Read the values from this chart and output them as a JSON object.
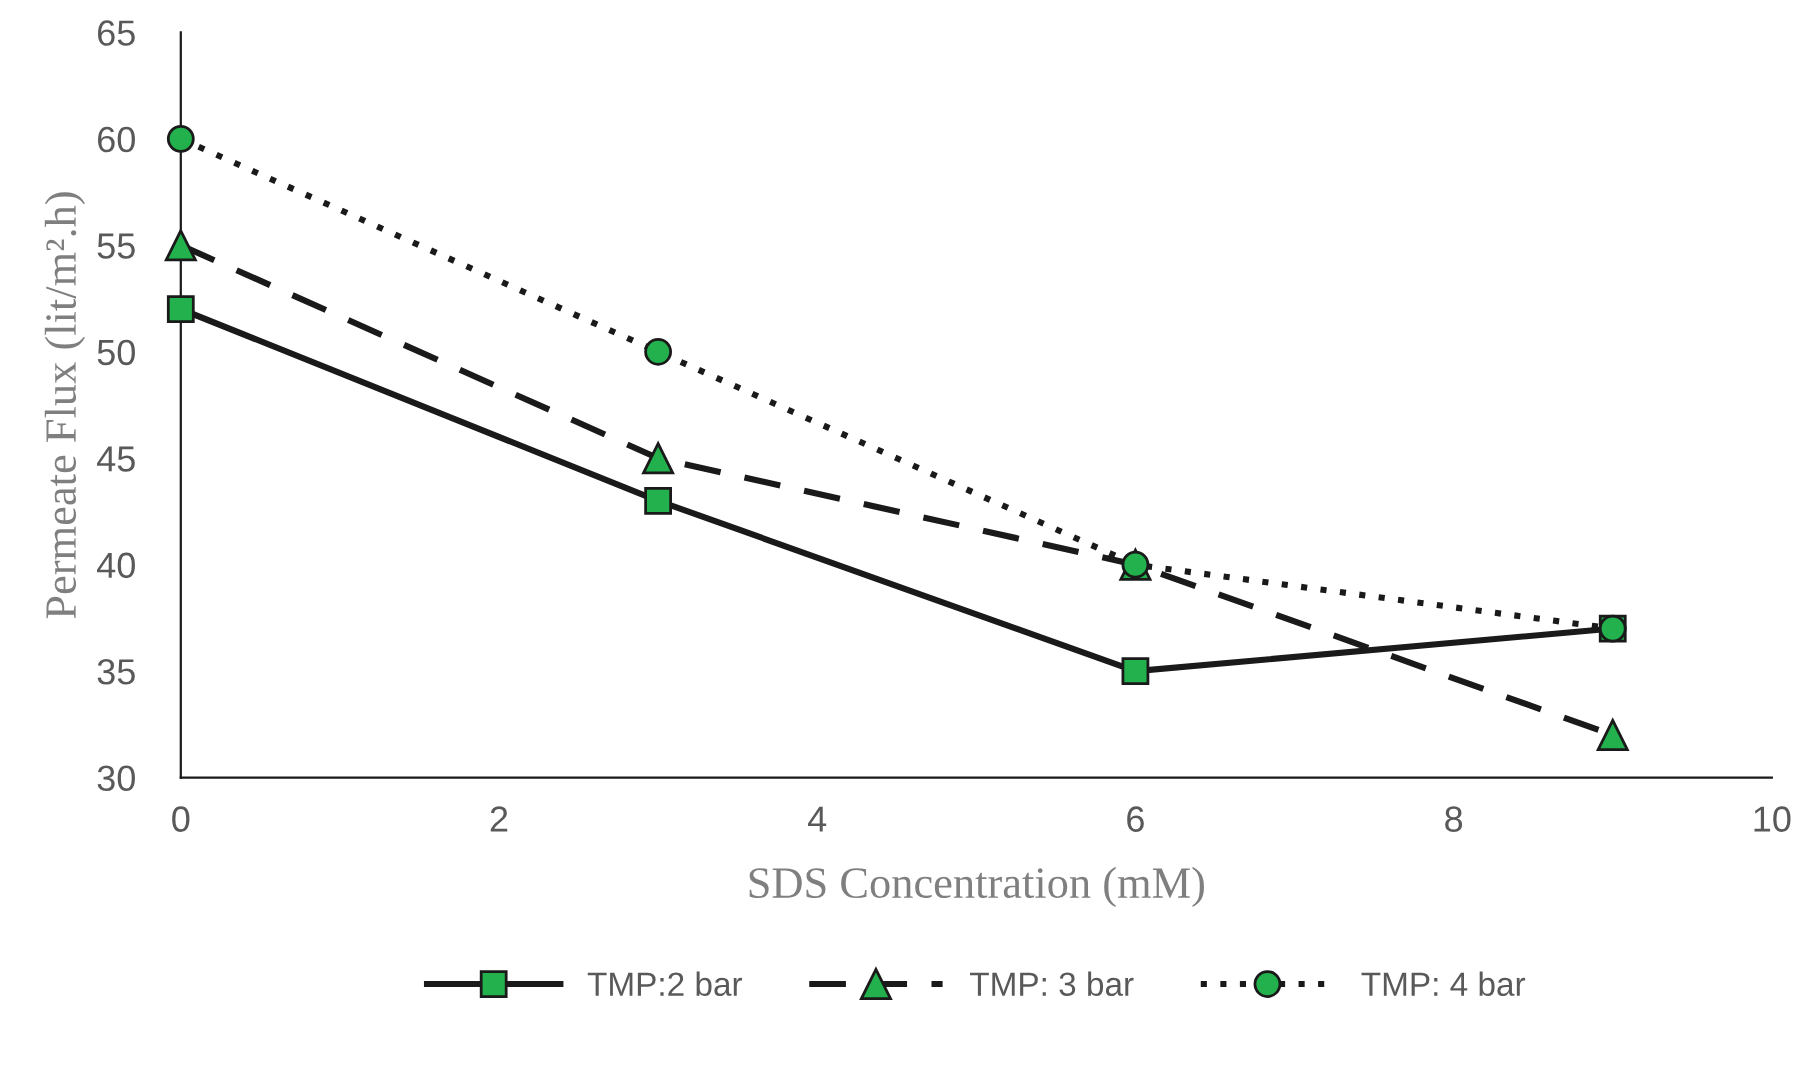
{
  "chart_data": {
    "type": "line",
    "xlabel": "SDS Concentration (mM)",
    "ylabel": "Permeate Flux (lit/m².h)",
    "x": [
      0,
      3,
      6,
      9
    ],
    "series": [
      {
        "name": "TMP:2 bar",
        "color": "#1a1a1a",
        "values": [
          52,
          43,
          35,
          37
        ],
        "marker": "square",
        "line_style": "solid"
      },
      {
        "name": "TMP: 3 bar",
        "color": "#1a1a1a",
        "values": [
          55,
          45,
          40,
          32
        ],
        "marker": "triangle",
        "line_style": "dashed"
      },
      {
        "name": "TMP: 4 bar",
        "color": "#1a1a1a",
        "values": [
          60,
          50,
          40,
          37
        ],
        "marker": "circle",
        "line_style": "dotted"
      }
    ],
    "xlim": [
      0,
      10
    ],
    "xticks": [
      0,
      2,
      4,
      6,
      8,
      10
    ],
    "ylim": [
      30,
      65
    ],
    "yticks": [
      30,
      35,
      40,
      45,
      50,
      55,
      60,
      65
    ],
    "grid": false,
    "legend": "bottom"
  }
}
